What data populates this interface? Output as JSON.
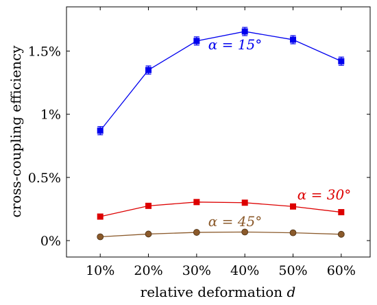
{
  "chart_data": {
    "type": "line",
    "x_categories": [
      "10%",
      "20%",
      "30%",
      "40%",
      "50%",
      "60%"
    ],
    "x": [
      10,
      20,
      30,
      40,
      50,
      60
    ],
    "xlabel": "relative deformation d",
    "ylabel": "cross-coupling efficiency",
    "ylim": [
      -0.13,
      1.85
    ],
    "y_ticks": [
      0,
      0.5,
      1,
      1.5
    ],
    "y_tick_labels": [
      "0%",
      "0.5%",
      "1%",
      "1.5%"
    ],
    "grid": false,
    "series": [
      {
        "name": "α = 15°",
        "color": "#0000ee",
        "marker": "square-with-errorbars",
        "values": [
          0.87,
          1.35,
          1.58,
          1.655,
          1.59,
          1.42
        ],
        "label_text": "α = 15°"
      },
      {
        "name": "α = 30°",
        "color": "#dd0000",
        "marker": "square",
        "values": [
          0.19,
          0.275,
          0.305,
          0.3,
          0.27,
          0.225
        ],
        "label_text": "α = 30°"
      },
      {
        "name": "α = 45°",
        "color": "#8b5a2b",
        "marker": "circle",
        "values": [
          0.03,
          0.052,
          0.065,
          0.068,
          0.062,
          0.05
        ],
        "label_text": "α = 45°"
      }
    ]
  }
}
